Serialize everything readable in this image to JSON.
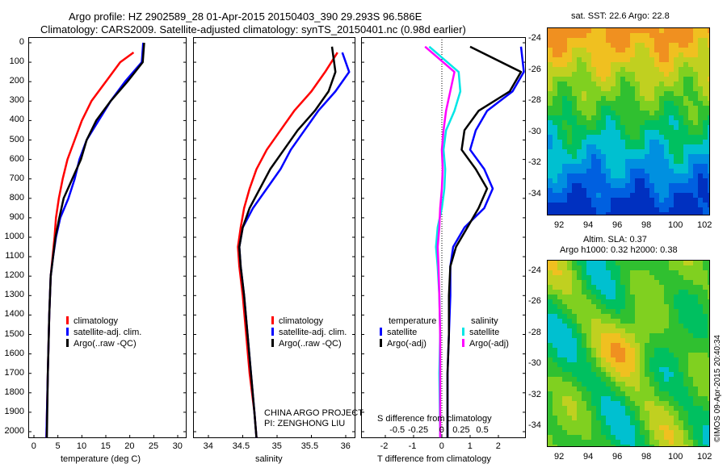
{
  "header": {
    "line1": "Argo profile: HZ 2902589_28 01-Apr-2015 20150403_390 29.293S 96.586E",
    "line2": "Climatology: CARS2009. Satellite-adjusted climatology: synTS_20150401.nc (0.98d earlier)"
  },
  "colors": {
    "climatology": "#ff0000",
    "satellite": "#0000ff",
    "argo": "#000000",
    "salinity_sat": "#00e6e6",
    "salinity_argo": "#ff00ff"
  },
  "depth_ticks": [
    "0",
    "100",
    "200",
    "300",
    "400",
    "500",
    "600",
    "700",
    "800",
    "900",
    "1000",
    "1100",
    "1200",
    "1300",
    "1400",
    "1500",
    "1600",
    "1700",
    "1800",
    "1900",
    "2000"
  ],
  "temp_panel": {
    "xlabel": "temperature (deg C)",
    "xticks": [
      "0",
      "5",
      "10",
      "15",
      "20",
      "25",
      "30"
    ],
    "legend": [
      "climatology",
      "satellite-adj. clim.",
      "Argo(..raw -QC)"
    ]
  },
  "sal_panel": {
    "xlabel": "salinity",
    "xticks": [
      "34",
      "34.5",
      "35",
      "35.5",
      "36"
    ],
    "legend": [
      "climatology",
      "satellite-adj. clim.",
      "Argo(..raw -QC)"
    ],
    "credit1": "CHINA ARGO PROJECT",
    "credit2": "PI: ZENGHONG LIU"
  },
  "diff_panel": {
    "xlabel": "T difference from climatology",
    "xticks": [
      "-2",
      "-1",
      "0",
      "1",
      "2"
    ],
    "s_label": "S difference from climatology",
    "s_ticks": [
      "-0.5",
      "-0.25",
      "0",
      "0.25",
      "0.5"
    ],
    "legend_t_title": "temperature",
    "legend_s_title": "salinity",
    "legend_t": [
      "satellite",
      "Argo(-adj)"
    ],
    "legend_s": [
      "satellite",
      "Argo(-adj)"
    ]
  },
  "map_sst": {
    "title": "sat. SST: 22.6  Argo: 22.8",
    "yticks": [
      "-24",
      "-26",
      "-28",
      "-30",
      "-32",
      "-34"
    ],
    "xticks": [
      "92",
      "94",
      "96",
      "98",
      "100",
      "102"
    ]
  },
  "map_sla": {
    "title1": "Altim. SLA: 0.37",
    "title2": "Argo h1000: 0.32 h2000: 0.38",
    "yticks": [
      "-24",
      "-26",
      "-28",
      "-30",
      "-32",
      "-34"
    ],
    "xticks": [
      "92",
      "94",
      "96",
      "98",
      "100",
      "102"
    ]
  },
  "footer": {
    "credit": "©IMOS 09-Apr-2015 20:40:34"
  },
  "chart_data": [
    {
      "type": "line",
      "title": "",
      "xlabel": "temperature (deg C)",
      "ylabel": "",
      "xlim": [
        -1,
        31.5
      ],
      "ylim": [
        2060,
        0
      ],
      "series": [
        {
          "name": "climatology",
          "x": [
            20.8,
            18,
            15,
            12,
            10,
            8.5,
            7,
            6,
            5.2,
            4.6,
            4.3,
            3.9,
            3.5,
            3.2,
            2.9,
            2.6
          ],
          "y": [
            50,
            100,
            200,
            300,
            400,
            500,
            600,
            700,
            800,
            900,
            1000,
            1100,
            1200,
            1400,
            1700,
            2030
          ]
        },
        {
          "name": "satellite-adj. clim.",
          "x": [
            22.8,
            22.5,
            19,
            16,
            13.5,
            11,
            9.5,
            8.5,
            7.2,
            5.5,
            4.6,
            4,
            3.5,
            3.2,
            2.9,
            2.6
          ],
          "y": [
            0,
            100,
            200,
            300,
            400,
            500,
            600,
            700,
            800,
            900,
            1000,
            1100,
            1200,
            1400,
            1700,
            2030
          ]
        },
        {
          "name": "Argo(..raw -QC)",
          "x": [
            23,
            22.7,
            19.5,
            16,
            13,
            11,
            9.8,
            8,
            6.2,
            5.3,
            4.5,
            4,
            3.5,
            3.2,
            2.9,
            2.7
          ],
          "y": [
            0,
            100,
            200,
            300,
            400,
            500,
            600,
            700,
            800,
            900,
            1000,
            1100,
            1200,
            1400,
            1700,
            2030
          ]
        }
      ]
    },
    {
      "type": "line",
      "title": "",
      "xlabel": "salinity",
      "ylabel": "",
      "xlim": [
        33.6,
        36.1
      ],
      "ylim": [
        2060,
        0
      ],
      "series": [
        {
          "name": "climatology",
          "x": [
            35.88,
            35.7,
            35.5,
            35.25,
            35.05,
            34.85,
            34.7,
            34.6,
            34.52,
            34.47,
            34.43,
            34.45,
            34.5,
            34.55,
            34.6,
            34.67,
            34.7
          ],
          "y": [
            50,
            150,
            250,
            350,
            450,
            550,
            650,
            750,
            850,
            950,
            1050,
            1150,
            1300,
            1500,
            1700,
            1900,
            2030
          ]
        },
        {
          "name": "satellite-adj. clim.",
          "x": [
            35.95,
            36.05,
            35.85,
            35.6,
            35.4,
            35.2,
            35.05,
            34.85,
            34.65,
            34.5,
            34.45,
            34.47,
            34.52,
            34.57,
            34.62,
            34.67,
            34.7
          ],
          "y": [
            50,
            150,
            250,
            350,
            450,
            550,
            650,
            750,
            850,
            950,
            1050,
            1150,
            1300,
            1500,
            1700,
            1900,
            2030
          ]
        },
        {
          "name": "Argo(..raw -QC)",
          "x": [
            35.8,
            35.85,
            35.75,
            35.55,
            35.3,
            35.1,
            34.9,
            34.75,
            34.6,
            34.5,
            34.45,
            34.47,
            34.52,
            34.57,
            34.62,
            34.67,
            34.7
          ],
          "y": [
            20,
            150,
            250,
            350,
            450,
            550,
            650,
            750,
            850,
            950,
            1050,
            1150,
            1300,
            1500,
            1700,
            1900,
            2030
          ]
        }
      ]
    },
    {
      "type": "line",
      "title": "",
      "xlabel": "T difference from climatology",
      "ylabel": "",
      "xlim": [
        -3.0,
        3.0
      ],
      "ylim": [
        2060,
        0
      ],
      "series": [
        {
          "name": "temperature satellite",
          "x": [
            2.8,
            2.9,
            2.5,
            1.6,
            1.2,
            1.0,
            1.5,
            1.8,
            1.5,
            0.8,
            0.4,
            0.3,
            0.3,
            0.25,
            0.2,
            0.2
          ],
          "y": [
            20,
            150,
            250,
            350,
            450,
            550,
            650,
            750,
            850,
            950,
            1050,
            1150,
            1300,
            1500,
            1700,
            2030
          ]
        },
        {
          "name": "temperature Argo(-adj)",
          "x": [
            1.0,
            2.8,
            2.4,
            1.3,
            0.8,
            0.7,
            1.2,
            1.6,
            1.3,
            0.9,
            0.5,
            0.3,
            0.25,
            0.25,
            0.2,
            0.2
          ],
          "y": [
            20,
            150,
            250,
            350,
            450,
            550,
            650,
            750,
            850,
            950,
            1050,
            1150,
            1300,
            1500,
            1700,
            2030
          ]
        },
        {
          "name": "salinity satellite",
          "x": [
            -0.15,
            0.2,
            0.22,
            0.15,
            0.05,
            0.02,
            0.04,
            0.03,
            0.0,
            -0.05,
            -0.07,
            -0.05,
            -0.03,
            -0.02,
            -0.03,
            -0.02
          ],
          "y": [
            20,
            150,
            250,
            350,
            450,
            550,
            650,
            750,
            850,
            950,
            1050,
            1150,
            1300,
            1500,
            1700,
            2030
          ]
        },
        {
          "name": "salinity Argo(-adj)",
          "x": [
            -0.2,
            0.15,
            0.1,
            0.05,
            0.02,
            0.0,
            0.01,
            0.0,
            -0.02,
            -0.03,
            -0.05,
            -0.04,
            -0.03,
            -0.02,
            -0.02,
            -0.02
          ],
          "y": [
            20,
            150,
            250,
            350,
            450,
            550,
            650,
            750,
            850,
            950,
            1050,
            1150,
            1300,
            1500,
            1700,
            2030
          ]
        }
      ]
    }
  ]
}
